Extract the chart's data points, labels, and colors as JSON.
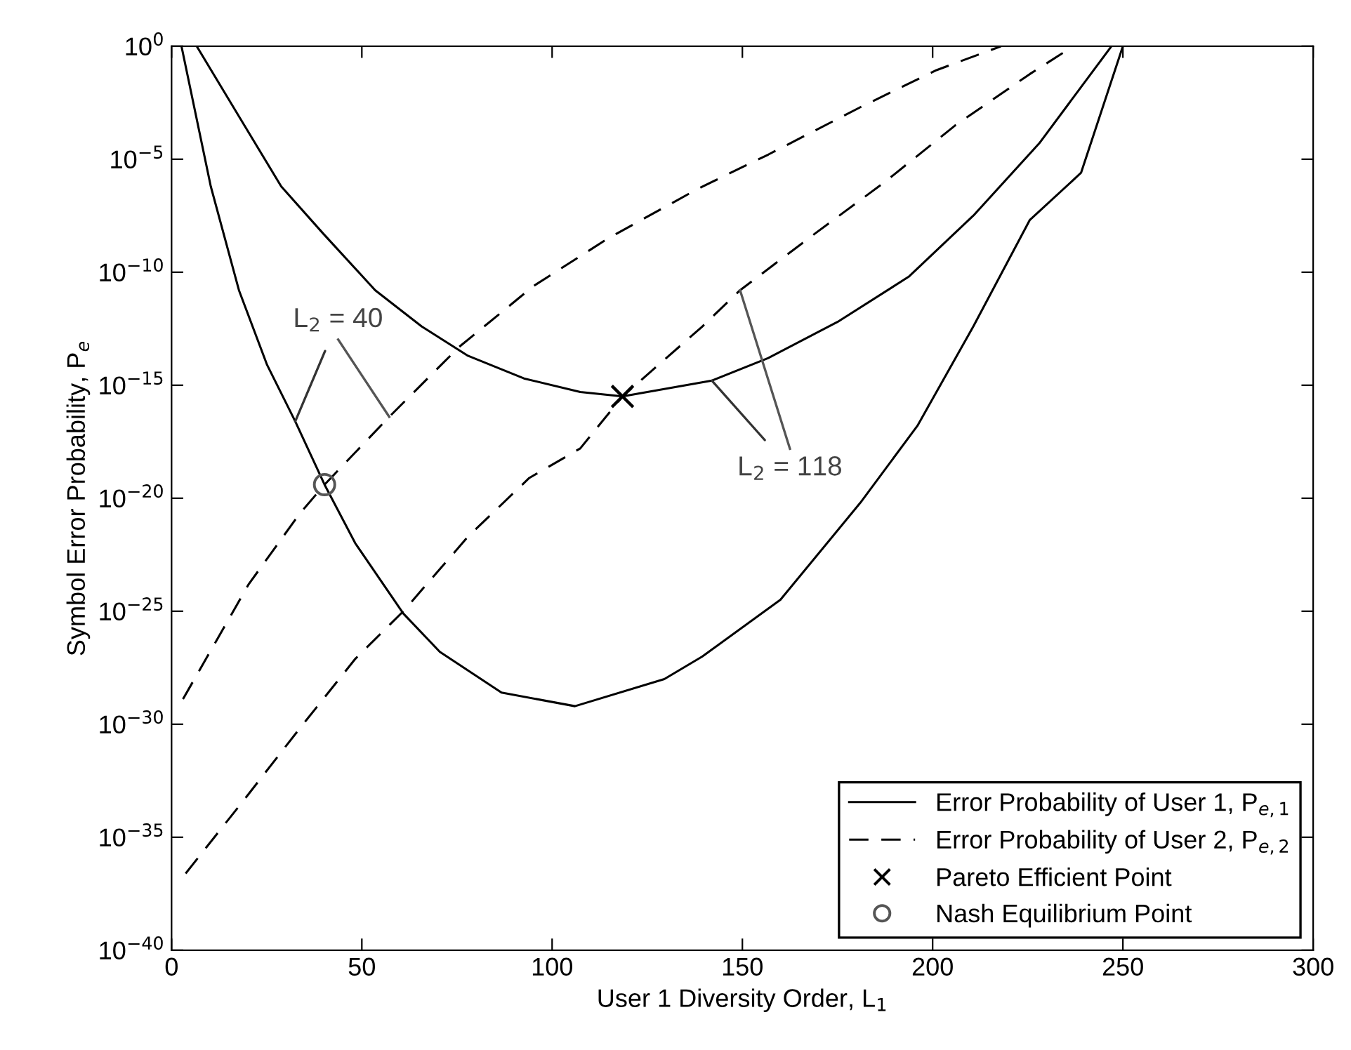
{
  "chart_data": {
    "type": "line",
    "xlabel": "User 1 Diversity Order, L$_{1}$",
    "ylabel": "Symbol Error Probability, P$_{e}$",
    "log": "y",
    "xlim": [
      0,
      300
    ],
    "xticks": [
      0,
      50,
      100,
      150,
      200,
      250,
      300
    ],
    "ylim": [
      1e-40,
      1
    ],
    "yticks": [
      {
        "value": 1e-40,
        "label": "10$^{−40}$"
      },
      {
        "value": 1e-35,
        "label": "10$^{−35}$"
      },
      {
        "value": 1e-30,
        "label": "10$^{−30}$"
      },
      {
        "value": 1e-25,
        "label": "10$^{−25}$"
      },
      {
        "value": 1e-20,
        "label": "10$^{−20}$"
      },
      {
        "value": 1e-15,
        "label": "10$^{−15}$"
      },
      {
        "value": 1e-10,
        "label": "10$^{−10}$"
      },
      {
        "value": 1e-05,
        "label": "10$^{−5}$"
      },
      {
        "value": 1,
        "label": "10$^{0}$"
      }
    ],
    "grid": false,
    "legend": "bottom right",
    "series": [
      {
        "name": "Error Probability of User 1, P$_{e,1}$",
        "line_style": "solid",
        "color": "#000000",
        "x": [
          2.6,
          10.3,
          17.7,
          25.1,
          32.5,
          40.2,
          48.3,
          60.9,
          70.5,
          86.7,
          106,
          129.5,
          139.5,
          160,
          181,
          196,
          210.7,
          225.5,
          239,
          250
        ],
        "values": [
          1,
          6.3e-07,
          1.6e-11,
          7.9e-15,
          2.5e-17,
          4e-20,
          1e-22,
          7.9e-26,
          1.6e-27,
          2.5e-29,
          6.3e-30,
          1e-28,
          1e-27,
          3.2e-25,
          6.3e-21,
          1.6e-17,
          4e-13,
          2e-08,
          2.5e-06,
          1
        ]
      },
      {
        "name": "Error Probability of User 2, P$_{e,2}$",
        "line_style": "dashed",
        "color": "#000000",
        "x": [
          3,
          20.3,
          33.6,
          40.2,
          57.2,
          75.6,
          95.2,
          114.8,
          138.4,
          156.8,
          181,
          201,
          218
        ],
        "values": [
          1.3e-29,
          1.6e-24,
          2e-21,
          4e-20,
          4e-17,
          5e-14,
          2.5e-11,
          3.2e-09,
          5e-07,
          1.6e-05,
          0.002,
          0.087,
          1
        ]
      },
      {
        "line_style": "solid",
        "color": "#000000",
        "x": [
          6.6,
          17.7,
          28.8,
          39.9,
          53.5,
          65.7,
          77.9,
          92.6,
          107.4,
          118.5,
          142,
          156.8,
          175,
          193.7,
          210.7,
          228,
          247
        ],
        "values": [
          1,
          0.00079,
          6.3e-07,
          5e-09,
          1.6e-11,
          4e-13,
          2e-14,
          2e-15,
          5e-16,
          3.2e-16,
          1.6e-15,
          1.6e-14,
          6.3e-13,
          6.3e-11,
          3.2e-08,
          5e-05,
          1
        ]
      },
      {
        "line_style": "dashed",
        "color": "#000000",
        "x": [
          3.7,
          18.8,
          33.6,
          48.3,
          60.9,
          77.9,
          94,
          107.4,
          118.5,
          139.5,
          149.4,
          169,
          187.5,
          206,
          225.5,
          237
        ],
        "values": [
          2.5e-37,
          4e-34,
          6.3e-31,
          7.9e-28,
          1e-25,
          2e-22,
          7.9e-20,
          1.6e-18,
          3.2e-16,
          4e-13,
          1.6e-11,
          5e-09,
          1e-06,
          0.00032,
          0.058,
          1
        ]
      },
      {
        "name": "Pareto Efficient Point",
        "type": "scatter",
        "marker": "cross",
        "color": "#000000",
        "x": [
          118.5
        ],
        "values": [
          3.2e-16
        ]
      },
      {
        "name": "Nash Equilibrium Point",
        "type": "scatter",
        "marker": "circle",
        "color": "#555555",
        "x": [
          40.2
        ],
        "values": [
          4e-20
        ]
      }
    ],
    "annotations": [
      {
        "text": "L$_{2}$ = 40",
        "x": 32.5,
        "y": 2.5e-17
      },
      {
        "text": "L$_{2}$ = 118",
        "x": 142,
        "y": 1.6e-15
      }
    ]
  }
}
